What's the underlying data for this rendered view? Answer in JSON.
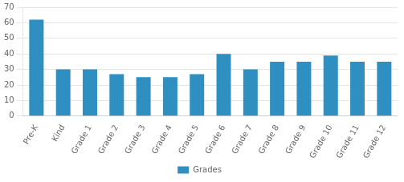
{
  "chart_data": {
    "type": "bar",
    "categories": [
      "Pre-K",
      "Kind",
      "Grade 1",
      "Grade 2",
      "Grade 3",
      "Grade 4",
      "Grade 5",
      "Grade 6",
      "Grade 7",
      "Grade 8",
      "Grade 9",
      "Grade 10",
      "Grade 11",
      "Grade 12"
    ],
    "series": [
      {
        "name": "Grades",
        "color": "#2e8fc0",
        "values": [
          62,
          30,
          30,
          27,
          25,
          25,
          27,
          40,
          30,
          35,
          35,
          39,
          35,
          35
        ]
      }
    ],
    "ylim": [
      0,
      70
    ],
    "yticks": [
      0,
      10,
      20,
      30,
      40,
      50,
      60,
      70
    ],
    "grid": true,
    "legend": "bottom"
  }
}
